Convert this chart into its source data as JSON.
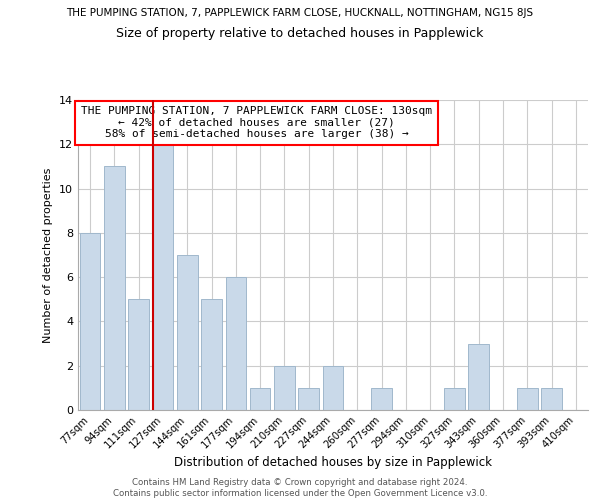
{
  "title_top": "THE PUMPING STATION, 7, PAPPLEWICK FARM CLOSE, HUCKNALL, NOTTINGHAM, NG15 8JS",
  "title_main": "Size of property relative to detached houses in Papplewick",
  "xlabel": "Distribution of detached houses by size in Papplewick",
  "ylabel": "Number of detached properties",
  "bar_labels": [
    "77sqm",
    "94sqm",
    "111sqm",
    "127sqm",
    "144sqm",
    "161sqm",
    "177sqm",
    "194sqm",
    "210sqm",
    "227sqm",
    "244sqm",
    "260sqm",
    "277sqm",
    "294sqm",
    "310sqm",
    "327sqm",
    "343sqm",
    "360sqm",
    "377sqm",
    "393sqm",
    "410sqm"
  ],
  "bar_values": [
    8,
    11,
    5,
    12,
    7,
    5,
    6,
    1,
    2,
    1,
    2,
    0,
    1,
    0,
    0,
    1,
    3,
    0,
    1,
    1,
    0
  ],
  "bar_color": "#c9d9e9",
  "bar_edgecolor": "#a0b8cc",
  "ref_line_index": 3,
  "ref_line_color": "#cc0000",
  "ylim": [
    0,
    14
  ],
  "yticks": [
    0,
    2,
    4,
    6,
    8,
    10,
    12,
    14
  ],
  "annotation_title": "THE PUMPING STATION, 7 PAPPLEWICK FARM CLOSE: 130sqm",
  "annotation_line2": "← 42% of detached houses are smaller (27)",
  "annotation_line3": "58% of semi-detached houses are larger (38) →",
  "footer_line1": "Contains HM Land Registry data © Crown copyright and database right 2024.",
  "footer_line2": "Contains public sector information licensed under the Open Government Licence v3.0.",
  "background_color": "#ffffff",
  "grid_color": "#cccccc"
}
